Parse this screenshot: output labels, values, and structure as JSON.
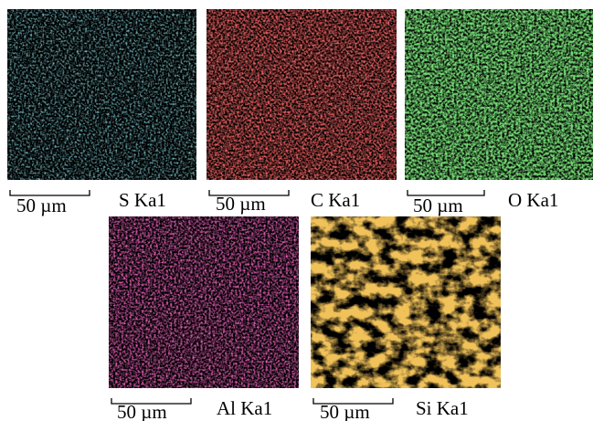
{
  "panels": [
    {
      "scale_bar": "50 µm",
      "label": "S Ka1"
    },
    {
      "scale_bar": "50 µm",
      "label": "C Ka1"
    },
    {
      "scale_bar": "50 µm",
      "label": "O Ka1"
    },
    {
      "scale_bar": "50 µm",
      "label": "Al Ka1"
    },
    {
      "scale_bar": "50 µm",
      "label": "Si Ka1"
    }
  ]
}
